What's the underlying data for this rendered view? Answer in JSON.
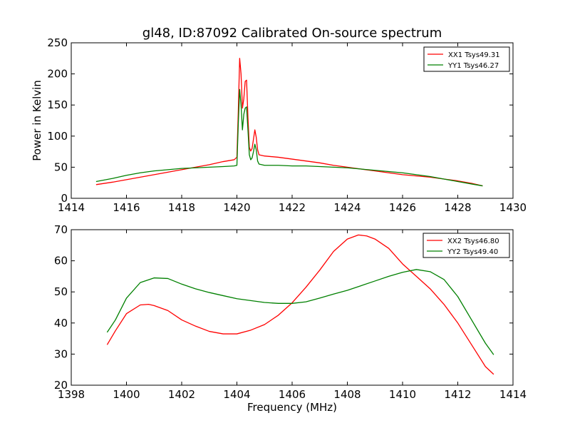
{
  "figure": {
    "title": "gl48, ID:87092 Calibrated On-source spectrum",
    "xlabel": "Frequency (MHz)",
    "ylabel": "Power in Kelvin"
  },
  "chart_data": [
    {
      "type": "line",
      "title": "gl48, ID:87092 Calibrated On-source spectrum",
      "xlabel": "",
      "ylabel": "Power in Kelvin",
      "xlim": [
        1414,
        1430
      ],
      "ylim": [
        0,
        250
      ],
      "xticks": [
        1414,
        1416,
        1418,
        1420,
        1422,
        1424,
        1426,
        1428,
        1430
      ],
      "yticks": [
        0,
        50,
        100,
        150,
        200,
        250
      ],
      "grid": false,
      "legend": "top-right",
      "series": [
        {
          "name": "XX1 Tsys49.31",
          "color": "#ff0000",
          "points": [
            [
              1414.9,
              22
            ],
            [
              1415.5,
              26
            ],
            [
              1416.0,
              30
            ],
            [
              1416.5,
              34
            ],
            [
              1417.0,
              38
            ],
            [
              1417.5,
              42
            ],
            [
              1418.0,
              46
            ],
            [
              1418.5,
              50
            ],
            [
              1419.0,
              54
            ],
            [
              1419.5,
              59
            ],
            [
              1419.9,
              62
            ],
            [
              1420.0,
              66
            ],
            [
              1420.05,
              140
            ],
            [
              1420.1,
              225
            ],
            [
              1420.15,
              200
            ],
            [
              1420.2,
              145
            ],
            [
              1420.25,
              160
            ],
            [
              1420.3,
              188
            ],
            [
              1420.35,
              190
            ],
            [
              1420.4,
              130
            ],
            [
              1420.45,
              82
            ],
            [
              1420.5,
              76
            ],
            [
              1420.55,
              80
            ],
            [
              1420.6,
              95
            ],
            [
              1420.65,
              110
            ],
            [
              1420.7,
              98
            ],
            [
              1420.75,
              78
            ],
            [
              1420.8,
              70
            ],
            [
              1421.0,
              68
            ],
            [
              1421.5,
              66
            ],
            [
              1422.0,
              63
            ],
            [
              1422.5,
              60
            ],
            [
              1423.0,
              57
            ],
            [
              1423.5,
              53
            ],
            [
              1424.0,
              50
            ],
            [
              1424.5,
              47
            ],
            [
              1425.0,
              44
            ],
            [
              1425.5,
              41
            ],
            [
              1426.0,
              38
            ],
            [
              1426.5,
              36
            ],
            [
              1427.0,
              34
            ],
            [
              1427.5,
              31
            ],
            [
              1428.0,
              28
            ],
            [
              1428.5,
              24
            ],
            [
              1428.9,
              20
            ]
          ]
        },
        {
          "name": "YY1 Tsys46.27",
          "color": "#008000",
          "points": [
            [
              1414.9,
              27
            ],
            [
              1415.5,
              32
            ],
            [
              1416.0,
              37
            ],
            [
              1416.5,
              41
            ],
            [
              1417.0,
              44
            ],
            [
              1417.5,
              46
            ],
            [
              1418.0,
              48
            ],
            [
              1418.5,
              49
            ],
            [
              1419.0,
              50
            ],
            [
              1419.5,
              51
            ],
            [
              1419.9,
              52
            ],
            [
              1420.0,
              53
            ],
            [
              1420.05,
              120
            ],
            [
              1420.1,
              175
            ],
            [
              1420.15,
              150
            ],
            [
              1420.2,
              110
            ],
            [
              1420.25,
              135
            ],
            [
              1420.3,
              145
            ],
            [
              1420.35,
              147
            ],
            [
              1420.4,
              110
            ],
            [
              1420.45,
              70
            ],
            [
              1420.5,
              62
            ],
            [
              1420.55,
              65
            ],
            [
              1420.6,
              75
            ],
            [
              1420.65,
              87
            ],
            [
              1420.7,
              78
            ],
            [
              1420.75,
              60
            ],
            [
              1420.8,
              55
            ],
            [
              1421.0,
              53
            ],
            [
              1421.5,
              53
            ],
            [
              1422.0,
              52
            ],
            [
              1422.5,
              52
            ],
            [
              1423.0,
              51
            ],
            [
              1423.5,
              50
            ],
            [
              1424.0,
              49
            ],
            [
              1424.5,
              47
            ],
            [
              1425.0,
              45
            ],
            [
              1425.5,
              43
            ],
            [
              1426.0,
              41
            ],
            [
              1426.5,
              38
            ],
            [
              1427.0,
              35
            ],
            [
              1427.5,
              31
            ],
            [
              1428.0,
              27
            ],
            [
              1428.5,
              23
            ],
            [
              1428.9,
              20
            ]
          ]
        }
      ]
    },
    {
      "type": "line",
      "title": "",
      "xlabel": "Frequency (MHz)",
      "ylabel": "",
      "xlim": [
        1398,
        1414
      ],
      "ylim": [
        20,
        70
      ],
      "xticks": [
        1398,
        1400,
        1402,
        1404,
        1406,
        1408,
        1410,
        1412,
        1414
      ],
      "yticks": [
        20,
        30,
        40,
        50,
        60,
        70
      ],
      "grid": false,
      "legend": "top-right",
      "series": [
        {
          "name": "XX2 Tsys46.80",
          "color": "#ff0000",
          "points": [
            [
              1399.3,
              33
            ],
            [
              1399.6,
              37.5
            ],
            [
              1400.0,
              43
            ],
            [
              1400.5,
              45.8
            ],
            [
              1400.8,
              46
            ],
            [
              1401.0,
              45.6
            ],
            [
              1401.5,
              44
            ],
            [
              1402.0,
              41
            ],
            [
              1402.5,
              39
            ],
            [
              1403.0,
              37.3
            ],
            [
              1403.5,
              36.5
            ],
            [
              1404.0,
              36.5
            ],
            [
              1404.5,
              37.7
            ],
            [
              1405.0,
              39.5
            ],
            [
              1405.5,
              42.5
            ],
            [
              1406.0,
              46.5
            ],
            [
              1406.5,
              51.5
            ],
            [
              1407.0,
              57
            ],
            [
              1407.5,
              63
            ],
            [
              1408.0,
              67
            ],
            [
              1408.4,
              68.3
            ],
            [
              1408.7,
              68
            ],
            [
              1409.0,
              67
            ],
            [
              1409.5,
              64
            ],
            [
              1410.0,
              59
            ],
            [
              1410.5,
              55
            ],
            [
              1411.0,
              51
            ],
            [
              1411.5,
              46
            ],
            [
              1412.0,
              40
            ],
            [
              1412.5,
              33
            ],
            [
              1413.0,
              26
            ],
            [
              1413.3,
              23.5
            ]
          ]
        },
        {
          "name": "YY2 Tsys49.40",
          "color": "#008000",
          "points": [
            [
              1399.3,
              37
            ],
            [
              1399.6,
              41
            ],
            [
              1400.0,
              48
            ],
            [
              1400.5,
              53
            ],
            [
              1401.0,
              54.5
            ],
            [
              1401.5,
              54.3
            ],
            [
              1402.0,
              52.5
            ],
            [
              1402.5,
              51
            ],
            [
              1403.0,
              49.8
            ],
            [
              1403.5,
              48.8
            ],
            [
              1404.0,
              47.8
            ],
            [
              1404.5,
              47.2
            ],
            [
              1405.0,
              46.6
            ],
            [
              1405.5,
              46.3
            ],
            [
              1406.0,
              46.3
            ],
            [
              1406.5,
              46.8
            ],
            [
              1407.0,
              48
            ],
            [
              1407.5,
              49.3
            ],
            [
              1408.0,
              50.5
            ],
            [
              1408.5,
              52
            ],
            [
              1409.0,
              53.5
            ],
            [
              1409.5,
              55
            ],
            [
              1410.0,
              56.3
            ],
            [
              1410.5,
              57.2
            ],
            [
              1411.0,
              56.5
            ],
            [
              1411.5,
              54
            ],
            [
              1412.0,
              48.5
            ],
            [
              1412.5,
              41
            ],
            [
              1413.0,
              33.5
            ],
            [
              1413.3,
              29.8
            ]
          ]
        }
      ]
    }
  ]
}
